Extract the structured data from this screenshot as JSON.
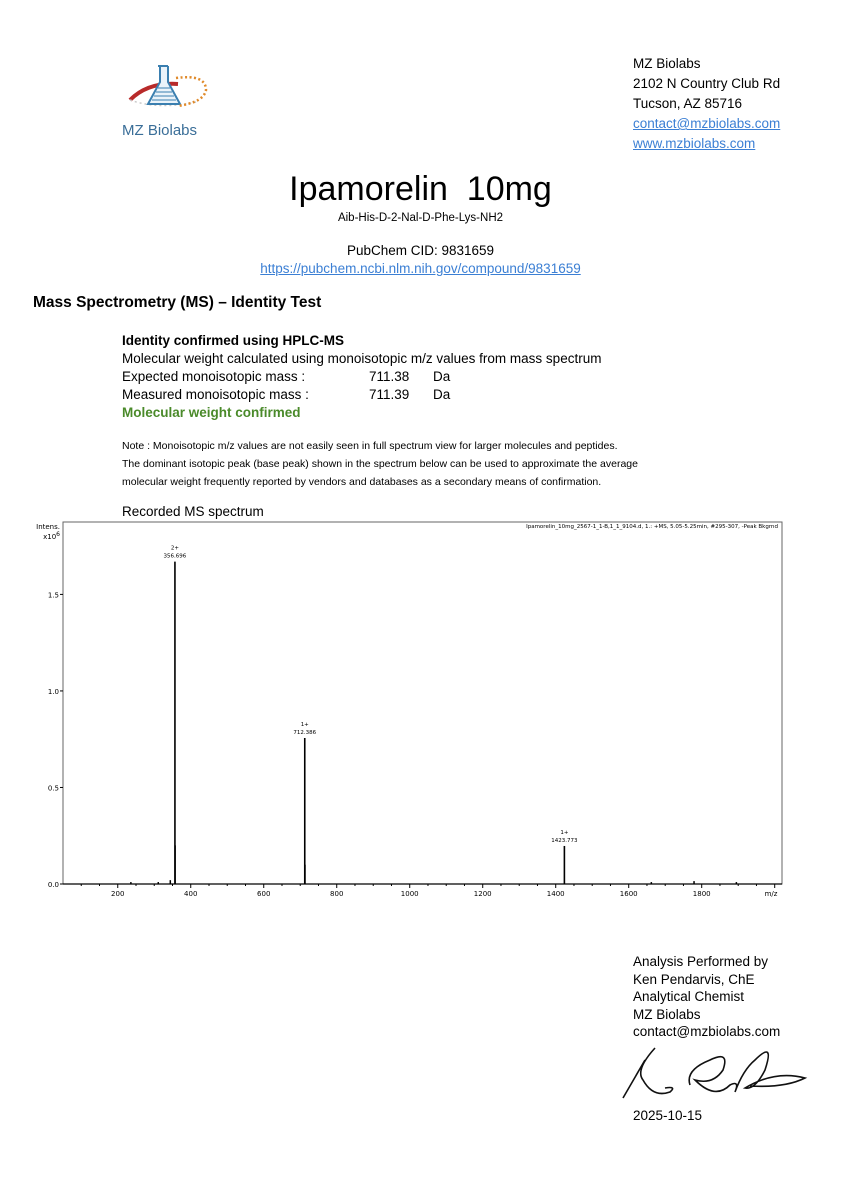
{
  "header": {
    "logo_text": "MZ Biolabs",
    "address": {
      "company": "MZ Biolabs",
      "street": "2102 N Country Club Rd",
      "city": "Tucson, AZ 85716",
      "email": "contact@mzbiolabs.com",
      "website": "www.mzbiolabs.com"
    }
  },
  "product": {
    "title": "Ipamorelin  10mg",
    "sequence": "Aib-His-D-2-Nal-D-Phe-Lys-NH2",
    "pubchem_cid": "PubChem CID: 9831659",
    "pubchem_url": "https://pubchem.ncbi.nlm.nih.gov/compound/9831659"
  },
  "ms": {
    "section_title": "Mass Spectrometry (MS) – Identity Test",
    "heading": "Identity confirmed using HPLC-MS",
    "method": "Molecular weight calculated using monoisotopic m/z values from mass spectrum",
    "rows": [
      {
        "label": "Expected monoisotopic mass :",
        "value": "711.38",
        "unit": "Da"
      },
      {
        "label": "Measured monoisotopic mass :",
        "value": "711.39",
        "unit": "Da"
      }
    ],
    "result": "Molecular weight confirmed",
    "result_color": "#4a8a2a",
    "note_lines": [
      "Note : Monoisotopic m/z values are not easily seen in full spectrum view for larger molecules and peptides.",
      "The dominant isotopic peak (base peak) shown in the spectrum below can be used to approximate the average",
      "molecular weight frequently reported by vendors and databases as a secondary means of confirmation."
    ],
    "spectrum_title": "Recorded MS spectrum"
  },
  "chart_data": {
    "type": "bar",
    "title": "Ipamorelin_10mg_2567-1_1-B,1_1_9104.d, 1.: +MS, 5.05-5.25min, #295-307, -Peak Bkgrnd",
    "ylabel": "Intens.",
    "ylabel_exponent": "x10",
    "ylabel_exponent_power": "6",
    "xlabel": "m/z",
    "xlim": [
      50,
      2020
    ],
    "ylim": [
      0,
      1.875
    ],
    "xticks": [
      200,
      400,
      600,
      800,
      1000,
      1200,
      1400,
      1600,
      1800
    ],
    "yticks": [
      0.0,
      0.5,
      1.0,
      1.5
    ],
    "ytick_labels": [
      "0.0",
      "0.5",
      "1.0",
      "1.5"
    ],
    "grid": false,
    "labeled_peaks": [
      {
        "mz": 356.696,
        "intensity": 1.67,
        "charge": "2+",
        "label": "356.696"
      },
      {
        "mz": 712.386,
        "intensity": 0.756,
        "charge": "1+",
        "label": "712.386"
      },
      {
        "mz": 1423.773,
        "intensity": 0.197,
        "charge": "1+",
        "label": "1423.773"
      }
    ],
    "minor_peaks": [
      {
        "mz": 357.2,
        "intensity": 0.2
      },
      {
        "mz": 713.0,
        "intensity": 0.1
      },
      {
        "mz": 344,
        "intensity": 0.02
      },
      {
        "mz": 311,
        "intensity": 0.01
      },
      {
        "mz": 236,
        "intensity": 0.01
      },
      {
        "mz": 1662,
        "intensity": 0.01
      },
      {
        "mz": 1779,
        "intensity": 0.015
      },
      {
        "mz": 1895,
        "intensity": 0.01
      }
    ]
  },
  "signature": {
    "lines": [
      "Analysis Performed by",
      "Ken Pendarvis, ChE",
      "Analytical Chemist",
      "MZ Biolabs",
      "contact@mzbiolabs.com"
    ],
    "signature_text": "Ken Pendarvis",
    "date": "2025-10-15"
  }
}
